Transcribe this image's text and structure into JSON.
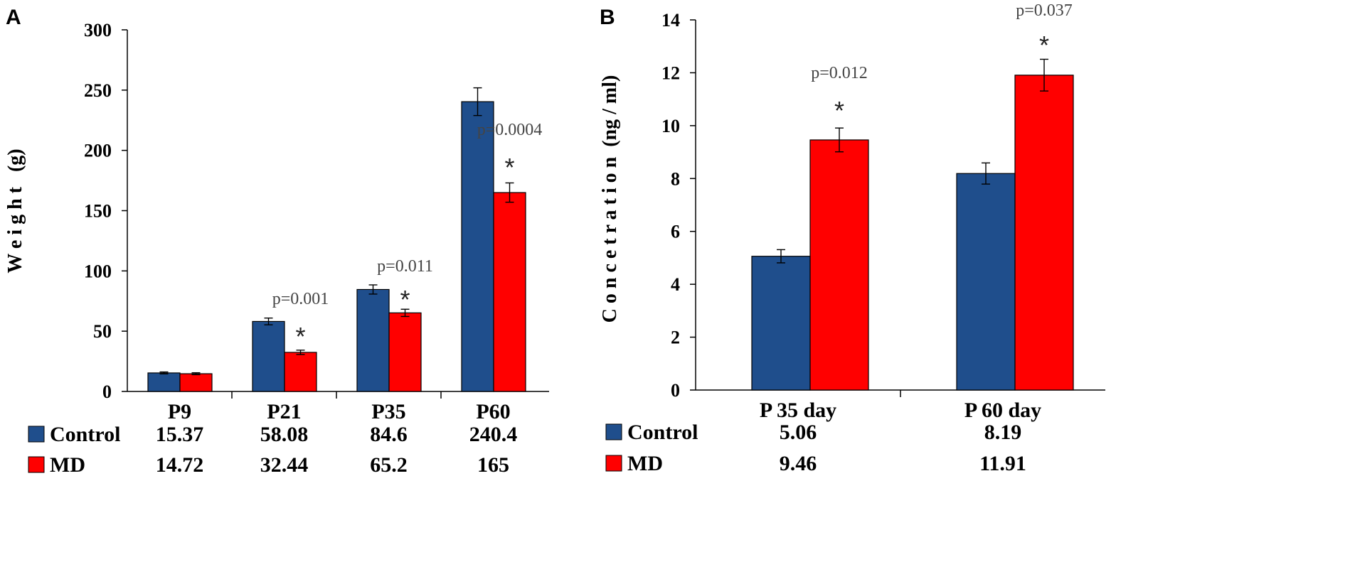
{
  "chart_data": [
    {
      "panel_label": "A",
      "type": "bar",
      "title": "",
      "xlabel": "",
      "ylabel": "W e i g h t   (g)",
      "ylim": [
        0,
        300
      ],
      "yticks": [
        0,
        50,
        100,
        150,
        200,
        250,
        300
      ],
      "categories": [
        "P9",
        "P21",
        "P35",
        "P60"
      ],
      "series": [
        {
          "name": "Control",
          "color": "#1f4e8c",
          "values": [
            15.37,
            58.08,
            84.6,
            240.4
          ],
          "errors": [
            0.8,
            2.8,
            3.8,
            11.5
          ],
          "labels": [
            "15.37",
            "58.08",
            "84.6",
            "240.4"
          ]
        },
        {
          "name": "MD",
          "color": "#ff0000",
          "values": [
            14.72,
            32.44,
            65.2,
            165
          ],
          "errors": [
            0.8,
            1.8,
            3.0,
            8.0
          ],
          "labels": [
            "14.72",
            "32.44",
            "65.2",
            "165"
          ]
        }
      ],
      "annotations": [
        {
          "category": "P21",
          "text": "p=0.001",
          "star": "*"
        },
        {
          "category": "P35",
          "text": "p=0.011",
          "star": "*"
        },
        {
          "category": "P60",
          "text": "p=0.0004",
          "star": "*"
        }
      ]
    },
    {
      "panel_label": "B",
      "type": "bar",
      "title": "",
      "xlabel": "",
      "ylabel": "C o n c e t r a t i o n  (ng / ml)",
      "ylim": [
        0,
        14
      ],
      "yticks": [
        0,
        2,
        4,
        6,
        8,
        10,
        12,
        14
      ],
      "categories": [
        "P 35 day",
        "P 60 day"
      ],
      "series": [
        {
          "name": "Control",
          "color": "#1f4e8c",
          "values": [
            5.06,
            8.19
          ],
          "errors": [
            0.25,
            0.4
          ],
          "labels": [
            "5.06",
            "8.19"
          ]
        },
        {
          "name": "MD",
          "color": "#ff0000",
          "values": [
            9.46,
            11.91
          ],
          "errors": [
            0.45,
            0.6
          ],
          "labels": [
            "9.46",
            "11.91"
          ]
        }
      ],
      "annotations": [
        {
          "category": "P 35 day",
          "text": "p=0.012",
          "star": "*"
        },
        {
          "category": "P 60 day",
          "text": "p=0.037",
          "star": "*"
        }
      ]
    }
  ]
}
